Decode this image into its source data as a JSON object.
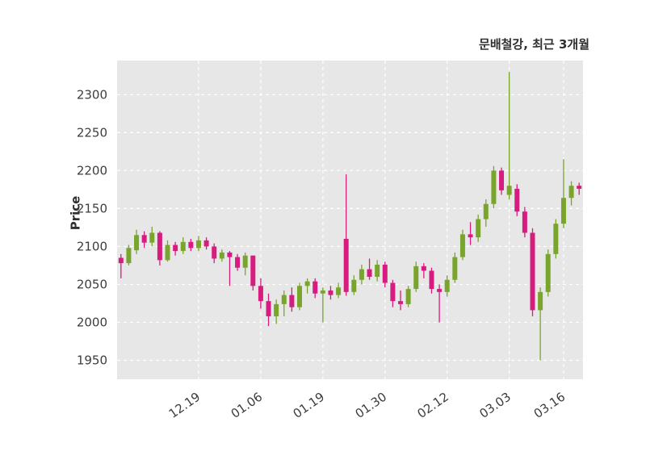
{
  "chart_data": {
    "type": "candlestick",
    "title": "문배철강, 최근 3개월",
    "ylabel": "Price",
    "yticks": [
      1950,
      2000,
      2050,
      2100,
      2150,
      2200,
      2250,
      2300
    ],
    "ylim": [
      1925,
      2345
    ],
    "grid": "dashed-white",
    "legend_position": "none",
    "colors": {
      "up": "#79a52c",
      "down": "#d61d7f",
      "plot_bg": "#e7e7e7",
      "grid": "#ffffff",
      "text": "#3d3d3d"
    },
    "xticks": [
      {
        "index": 10,
        "label": "12.19"
      },
      {
        "index": 18,
        "label": "01.06"
      },
      {
        "index": 26,
        "label": "01.19"
      },
      {
        "index": 34,
        "label": "01.30"
      },
      {
        "index": 42,
        "label": "02.12"
      },
      {
        "index": 50,
        "label": "03.03"
      },
      {
        "index": 57,
        "label": "03.16"
      }
    ],
    "candles_format": [
      "open",
      "high",
      "low",
      "close"
    ],
    "candles": [
      [
        2085,
        2090,
        2058,
        2078
      ],
      [
        2078,
        2102,
        2075,
        2098
      ],
      [
        2095,
        2122,
        2090,
        2115
      ],
      [
        2115,
        2120,
        2098,
        2105
      ],
      [
        2105,
        2126,
        2100,
        2118
      ],
      [
        2118,
        2120,
        2075,
        2082
      ],
      [
        2082,
        2108,
        2080,
        2102
      ],
      [
        2102,
        2106,
        2088,
        2094
      ],
      [
        2094,
        2112,
        2090,
        2106
      ],
      [
        2106,
        2110,
        2094,
        2098
      ],
      [
        2098,
        2114,
        2094,
        2108
      ],
      [
        2108,
        2112,
        2096,
        2100
      ],
      [
        2100,
        2104,
        2078,
        2084
      ],
      [
        2084,
        2096,
        2080,
        2092
      ],
      [
        2092,
        2094,
        2048,
        2086
      ],
      [
        2086,
        2090,
        2068,
        2072
      ],
      [
        2072,
        2092,
        2062,
        2088
      ],
      [
        2088,
        2088,
        2042,
        2048
      ],
      [
        2048,
        2058,
        2018,
        2028
      ],
      [
        2028,
        2038,
        1995,
        2008
      ],
      [
        2008,
        2030,
        1998,
        2024
      ],
      [
        2024,
        2042,
        2008,
        2036
      ],
      [
        2036,
        2046,
        2014,
        2020
      ],
      [
        2020,
        2052,
        2016,
        2048
      ],
      [
        2048,
        2058,
        2038,
        2054
      ],
      [
        2054,
        2058,
        2032,
        2038
      ],
      [
        2038,
        2046,
        2000,
        2042
      ],
      [
        2042,
        2048,
        2030,
        2036
      ],
      [
        2036,
        2052,
        2032,
        2046
      ],
      [
        2110,
        2195,
        2035,
        2040
      ],
      [
        2040,
        2062,
        2036,
        2056
      ],
      [
        2056,
        2076,
        2050,
        2070
      ],
      [
        2070,
        2084,
        2056,
        2060
      ],
      [
        2060,
        2082,
        2054,
        2076
      ],
      [
        2076,
        2080,
        2046,
        2052
      ],
      [
        2052,
        2056,
        2020,
        2028
      ],
      [
        2028,
        2042,
        2016,
        2024
      ],
      [
        2024,
        2048,
        2020,
        2044
      ],
      [
        2044,
        2080,
        2040,
        2074
      ],
      [
        2074,
        2078,
        2058,
        2068
      ],
      [
        2068,
        2072,
        2038,
        2044
      ],
      [
        2044,
        2050,
        2000,
        2040
      ],
      [
        2040,
        2062,
        2034,
        2056
      ],
      [
        2056,
        2092,
        2052,
        2086
      ],
      [
        2086,
        2122,
        2082,
        2116
      ],
      [
        2116,
        2132,
        2102,
        2112
      ],
      [
        2112,
        2142,
        2106,
        2136
      ],
      [
        2136,
        2162,
        2126,
        2156
      ],
      [
        2156,
        2206,
        2150,
        2200
      ],
      [
        2200,
        2204,
        2168,
        2174
      ],
      [
        2168,
        2330,
        2162,
        2180
      ],
      [
        2176,
        2182,
        2140,
        2146
      ],
      [
        2146,
        2152,
        2112,
        2118
      ],
      [
        2118,
        2124,
        2008,
        2016
      ],
      [
        2016,
        2046,
        1950,
        2040
      ],
      [
        2040,
        2096,
        2034,
        2090
      ],
      [
        2090,
        2136,
        2084,
        2130
      ],
      [
        2130,
        2215,
        2124,
        2164
      ],
      [
        2164,
        2186,
        2154,
        2180
      ],
      [
        2180,
        2184,
        2168,
        2176
      ]
    ]
  }
}
